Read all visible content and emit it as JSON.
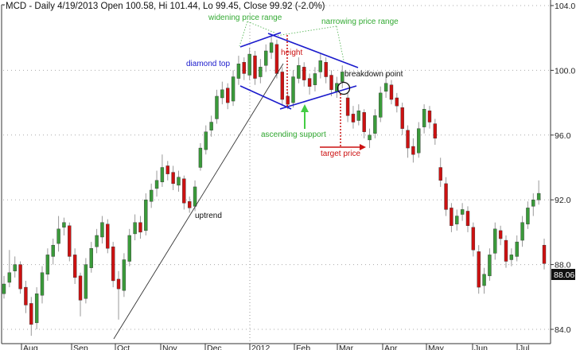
{
  "header": {
    "title": "MCD - Daily 4/19/2013 Open 100.58, Hi 101.44, Lo 99.45, Close 99.92 (-2.0%)"
  },
  "last_price_label": "88.06",
  "colors": {
    "up": "#3a9a3a",
    "down": "#cc1111",
    "wick": "#999999",
    "pattern": "#1a1acc",
    "note_green": "#33aa33",
    "note_red": "#cc1111"
  },
  "annotations": {
    "widening": "widening price range",
    "narrowing": "narrowing price range",
    "diamond_top": "diamond top",
    "height": "height",
    "breakdown": "breakdown point",
    "ascending_support": "ascending support",
    "target_price": "target price",
    "uptrend": "uptrend"
  },
  "chart_data": {
    "type": "candlestick",
    "title": "MCD - Daily 4/19/2013 Open 100.58, Hi 101.44, Lo 99.45, Close 99.92 (-2.0%)",
    "ylim": [
      83.5,
      104.3
    ],
    "y_ticks": [
      "104.0",
      "100.0",
      "96.0",
      "92.0",
      "88.0",
      "84.0"
    ],
    "x_ticks": [
      "Aug",
      "Sep",
      "Oct",
      "Nov",
      "Dec",
      "2012",
      "Feb",
      "Mar",
      "Apr",
      "May",
      "Jun",
      "Jul"
    ],
    "grid": "horizontal dotted",
    "ohlc": [
      [
        86.2,
        87.3,
        85.9,
        86.8
      ],
      [
        86.9,
        88.9,
        86.6,
        87.5
      ],
      [
        87.6,
        88.5,
        87.2,
        88.0
      ],
      [
        88.0,
        88.2,
        86.2,
        86.5
      ],
      [
        86.6,
        87.0,
        85.0,
        85.5
      ],
      [
        85.6,
        86.0,
        83.6,
        84.3
      ],
      [
        84.4,
        86.6,
        84.0,
        86.2
      ],
      [
        86.1,
        87.9,
        85.6,
        87.5
      ],
      [
        87.4,
        89.0,
        87.0,
        88.6
      ],
      [
        88.5,
        89.6,
        88.0,
        89.2
      ],
      [
        89.3,
        91.0,
        88.8,
        90.2
      ],
      [
        90.3,
        90.9,
        89.8,
        90.6
      ],
      [
        90.4,
        90.6,
        88.2,
        88.5
      ],
      [
        88.6,
        89.0,
        86.8,
        87.2
      ],
      [
        87.3,
        87.5,
        84.8,
        85.8
      ],
      [
        85.9,
        88.4,
        85.6,
        88.0
      ],
      [
        87.8,
        89.4,
        87.5,
        89.0
      ],
      [
        89.1,
        90.2,
        88.7,
        89.8
      ],
      [
        89.7,
        91.0,
        89.3,
        90.6
      ],
      [
        90.5,
        90.8,
        88.7,
        89.0
      ],
      [
        89.1,
        89.4,
        86.6,
        87.0
      ],
      [
        87.1,
        87.6,
        84.6,
        86.5
      ],
      [
        86.4,
        88.7,
        86.0,
        88.3
      ],
      [
        88.2,
        90.2,
        87.9,
        89.8
      ],
      [
        89.9,
        91.1,
        89.5,
        90.6
      ],
      [
        90.6,
        91.0,
        89.6,
        90.0
      ],
      [
        90.1,
        92.4,
        89.8,
        92.0
      ],
      [
        91.9,
        93.0,
        91.5,
        92.6
      ],
      [
        92.7,
        93.8,
        92.2,
        93.2
      ],
      [
        93.1,
        94.8,
        92.8,
        94.0
      ],
      [
        94.1,
        94.4,
        93.2,
        93.6
      ],
      [
        93.7,
        94.1,
        92.6,
        93.0
      ],
      [
        92.9,
        93.8,
        92.5,
        93.4
      ],
      [
        93.3,
        93.5,
        91.4,
        91.8
      ],
      [
        91.9,
        92.2,
        91.2,
        91.5
      ],
      [
        91.6,
        93.2,
        91.3,
        92.8
      ],
      [
        94.0,
        95.5,
        93.8,
        95.2
      ],
      [
        95.1,
        96.6,
        94.8,
        96.2
      ],
      [
        96.3,
        97.2,
        95.9,
        96.8
      ],
      [
        97.0,
        98.8,
        96.7,
        98.4
      ],
      [
        98.3,
        99.3,
        97.9,
        98.8
      ],
      [
        98.9,
        99.2,
        97.6,
        98.0
      ],
      [
        98.1,
        100.0,
        97.8,
        99.6
      ],
      [
        99.5,
        100.9,
        99.1,
        100.4
      ],
      [
        100.5,
        100.8,
        99.4,
        99.8
      ],
      [
        99.7,
        101.4,
        99.4,
        101.0
      ],
      [
        100.9,
        101.2,
        99.1,
        99.5
      ],
      [
        99.6,
        100.7,
        99.2,
        100.2
      ],
      [
        100.3,
        101.6,
        99.9,
        101.2
      ],
      [
        101.1,
        102.1,
        100.7,
        101.7
      ],
      [
        101.6,
        101.9,
        99.5,
        99.8
      ],
      [
        99.9,
        100.2,
        97.8,
        98.2
      ],
      [
        98.4,
        98.7,
        97.6,
        97.9
      ],
      [
        98.0,
        100.0,
        97.7,
        99.6
      ],
      [
        99.5,
        100.8,
        99.2,
        100.3
      ],
      [
        100.2,
        100.5,
        99.0,
        99.4
      ],
      [
        99.5,
        99.8,
        98.5,
        99.0
      ],
      [
        99.1,
        100.2,
        98.7,
        99.8
      ],
      [
        99.9,
        101.0,
        99.5,
        100.6
      ],
      [
        100.5,
        100.8,
        99.2,
        99.6
      ],
      [
        99.7,
        100.0,
        98.4,
        98.8
      ],
      [
        98.7,
        99.6,
        98.3,
        99.2
      ],
      [
        99.3,
        100.3,
        98.9,
        99.9
      ],
      [
        98.3,
        98.6,
        96.8,
        97.2
      ],
      [
        97.3,
        97.8,
        96.4,
        96.8
      ],
      [
        96.9,
        97.9,
        96.6,
        97.5
      ],
      [
        97.4,
        97.6,
        95.8,
        96.2
      ],
      [
        95.7,
        96.4,
        95.2,
        96.0
      ],
      [
        96.1,
        97.6,
        95.8,
        97.2
      ],
      [
        97.1,
        99.0,
        96.8,
        98.6
      ],
      [
        98.7,
        99.8,
        98.3,
        99.2
      ],
      [
        99.1,
        99.4,
        97.9,
        98.2
      ],
      [
        98.3,
        98.6,
        97.4,
        97.8
      ],
      [
        97.7,
        98.0,
        96.0,
        96.4
      ],
      [
        96.3,
        96.6,
        94.6,
        95.2
      ],
      [
        95.3,
        95.8,
        94.3,
        94.8
      ],
      [
        94.9,
        96.8,
        94.6,
        96.4
      ],
      [
        96.5,
        97.9,
        96.1,
        97.6
      ],
      [
        97.5,
        97.8,
        96.4,
        96.8
      ],
      [
        96.7,
        97.0,
        95.4,
        95.8
      ],
      [
        94.0,
        94.6,
        92.8,
        93.2
      ],
      [
        93.0,
        93.4,
        91.0,
        91.4
      ],
      [
        91.5,
        91.8,
        90.0,
        90.4
      ],
      [
        90.5,
        91.4,
        90.1,
        91.0
      ],
      [
        91.1,
        91.8,
        90.7,
        91.4
      ],
      [
        91.3,
        91.6,
        90.0,
        90.4
      ],
      [
        90.3,
        90.6,
        88.5,
        88.9
      ],
      [
        88.8,
        89.2,
        86.2,
        86.6
      ],
      [
        86.7,
        87.8,
        86.2,
        87.4
      ],
      [
        87.3,
        89.0,
        87.0,
        88.6
      ],
      [
        88.7,
        90.6,
        88.3,
        90.2
      ],
      [
        90.1,
        90.4,
        89.2,
        89.6
      ],
      [
        89.5,
        89.8,
        87.8,
        88.2
      ],
      [
        88.3,
        89.0,
        87.9,
        88.6
      ],
      [
        88.5,
        89.8,
        88.2,
        89.4
      ],
      [
        89.5,
        91.0,
        89.1,
        90.6
      ],
      [
        90.5,
        91.9,
        90.2,
        91.5
      ],
      [
        91.6,
        92.4,
        91.0,
        92.0
      ],
      [
        92.0,
        93.2,
        91.7,
        92.4
      ],
      [
        89.2,
        89.6,
        87.7,
        88.06
      ]
    ]
  }
}
